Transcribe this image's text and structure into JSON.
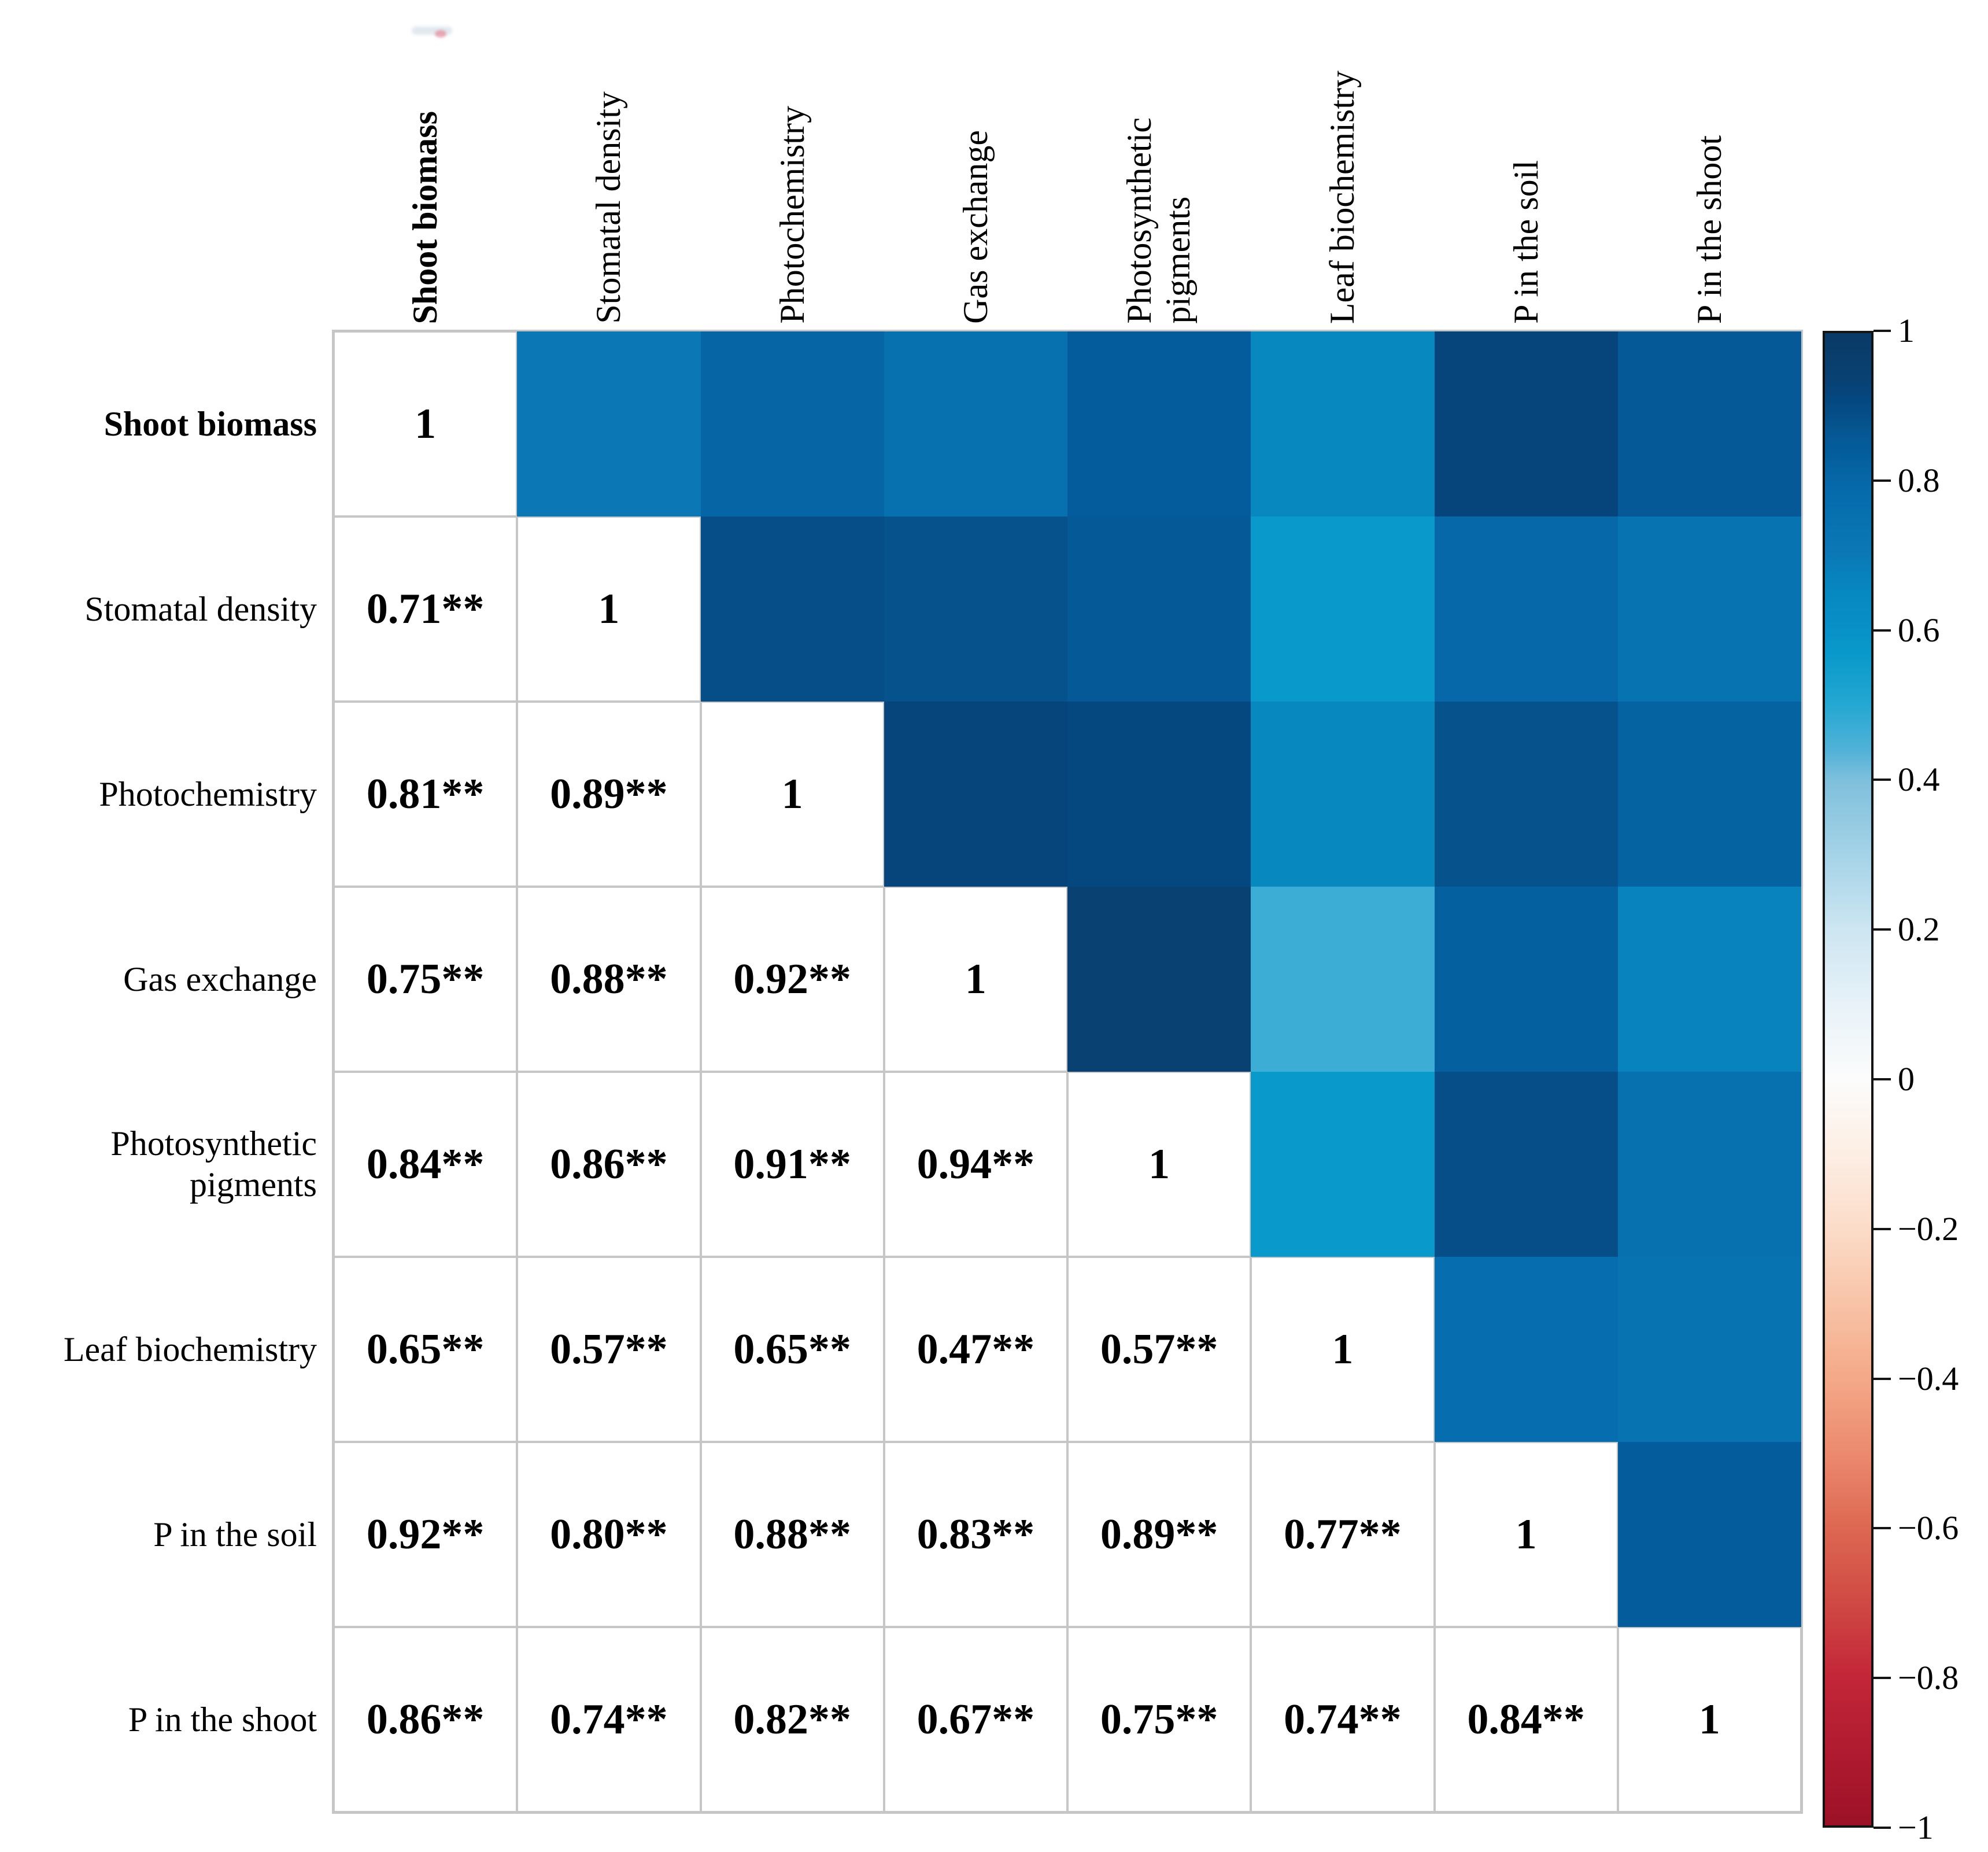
{
  "chart_data": {
    "type": "heatmap",
    "subtype": "correlation-matrix-half-colored",
    "variables": [
      "Shoot biomass",
      "Stomatal density",
      "Photochemistry",
      "Gas exchange",
      "Photosynthetic\npigments",
      "Leaf biochemistry",
      "P in the soil",
      "P in the shoot"
    ],
    "bold_variable_index": 0,
    "matrix": [
      [
        1.0,
        0.71,
        0.81,
        0.75,
        0.84,
        0.65,
        0.92,
        0.86
      ],
      [
        0.71,
        1.0,
        0.89,
        0.88,
        0.86,
        0.57,
        0.8,
        0.74
      ],
      [
        0.81,
        0.89,
        1.0,
        0.92,
        0.91,
        0.65,
        0.88,
        0.82
      ],
      [
        0.75,
        0.88,
        0.92,
        1.0,
        0.94,
        0.47,
        0.83,
        0.67
      ],
      [
        0.84,
        0.86,
        0.91,
        0.94,
        1.0,
        0.57,
        0.89,
        0.75
      ],
      [
        0.65,
        0.57,
        0.65,
        0.47,
        0.57,
        1.0,
        0.77,
        0.74
      ],
      [
        0.92,
        0.8,
        0.88,
        0.83,
        0.89,
        0.77,
        1.0,
        0.84
      ],
      [
        0.86,
        0.74,
        0.82,
        0.67,
        0.75,
        0.74,
        0.84,
        1.0
      ]
    ],
    "cell_labels": [
      [
        "1"
      ],
      [
        "0.71**",
        "1"
      ],
      [
        "0.81**",
        "0.89**",
        "1"
      ],
      [
        "0.75**",
        "0.88**",
        "0.92**",
        "1"
      ],
      [
        "0.84**",
        "0.86**",
        "0.91**",
        "0.94**",
        "1"
      ],
      [
        "0.65**",
        "0.57**",
        "0.65**",
        "0.47**",
        "0.57**",
        "1"
      ],
      [
        "0.92**",
        "0.80**",
        "0.88**",
        "0.83**",
        "0.89**",
        "0.77**",
        "1"
      ],
      [
        "0.86**",
        "0.74**",
        "0.82**",
        "0.67**",
        "0.75**",
        "0.74**",
        "0.84**",
        "1"
      ]
    ],
    "colorbar": {
      "min": -1,
      "max": 1,
      "tick_values": [
        1,
        0.8,
        0.6,
        0.4,
        0.2,
        0,
        -0.2,
        -0.4,
        -0.6,
        -0.8,
        -1
      ],
      "tick_labels": [
        "1",
        "0.8",
        "0.6",
        "0.4",
        "0.2",
        "0",
        "−0.2",
        "−0.4",
        "−0.6",
        "−0.8",
        "−1"
      ],
      "legend_position": "right"
    },
    "colormap_stops": [
      {
        "v": 1.0,
        "c": "#0a3a66"
      },
      {
        "v": 0.94,
        "c": "#094173"
      },
      {
        "v": 0.92,
        "c": "#05457c"
      },
      {
        "v": 0.91,
        "c": "#054880"
      },
      {
        "v": 0.89,
        "c": "#054e88"
      },
      {
        "v": 0.88,
        "c": "#05528c"
      },
      {
        "v": 0.86,
        "c": "#055996"
      },
      {
        "v": 0.84,
        "c": "#045c9c"
      },
      {
        "v": 0.82,
        "c": "#0563a2"
      },
      {
        "v": 0.8,
        "c": "#0668a9"
      },
      {
        "v": 0.77,
        "c": "#066eae"
      },
      {
        "v": 0.74,
        "c": "#0873b1"
      },
      {
        "v": 0.71,
        "c": "#0b77b4"
      },
      {
        "v": 0.68,
        "c": "#0880bb"
      },
      {
        "v": 0.65,
        "c": "#0789c0"
      },
      {
        "v": 0.62,
        "c": "#088dc4"
      },
      {
        "v": 0.57,
        "c": "#0999cb"
      },
      {
        "v": 0.5,
        "c": "#25a8d2"
      },
      {
        "v": 0.44,
        "c": "#52b2d8"
      },
      {
        "v": 0.4,
        "c": "#7fc0dc"
      },
      {
        "v": 0.3,
        "c": "#a5d3e7"
      },
      {
        "v": 0.2,
        "c": "#cde6f2"
      },
      {
        "v": 0.1,
        "c": "#e8f2f8"
      },
      {
        "v": 0.0,
        "c": "#fcfcfc"
      },
      {
        "v": -0.1,
        "c": "#fdeee4"
      },
      {
        "v": -0.2,
        "c": "#fbdcc9"
      },
      {
        "v": -0.3,
        "c": "#f8c3a7"
      },
      {
        "v": -0.4,
        "c": "#f4a988"
      },
      {
        "v": -0.5,
        "c": "#ec8a6f"
      },
      {
        "v": -0.6,
        "c": "#dd6852"
      },
      {
        "v": -0.7,
        "c": "#d04a44"
      },
      {
        "v": -0.8,
        "c": "#c32638"
      },
      {
        "v": -0.9,
        "c": "#b01b30"
      },
      {
        "v": -1.0,
        "c": "#9c1127"
      }
    ],
    "grid_color": "#c6c6c6",
    "text_color": "#000000",
    "background": "#ffffff",
    "grid_on": true
  }
}
